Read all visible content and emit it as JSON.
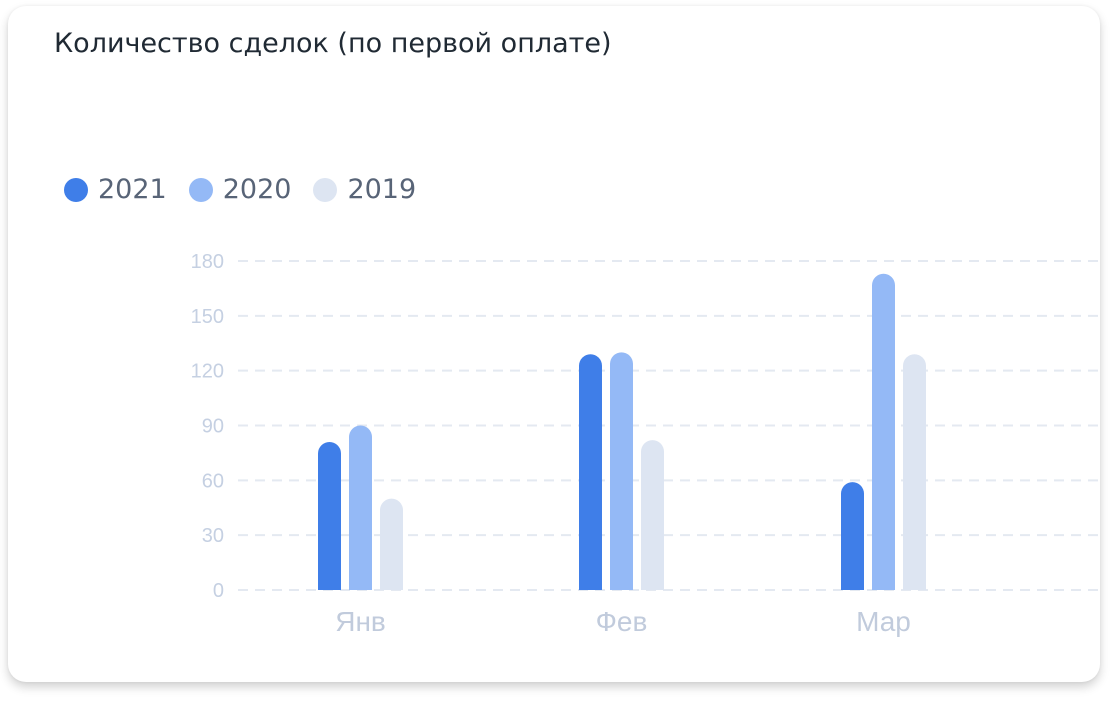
{
  "card": {
    "title": "Количество сделок (по первой оплате)"
  },
  "legend": {
    "items": [
      {
        "label": "2021",
        "color": "#3f7ee8"
      },
      {
        "label": "2020",
        "color": "#94b9f6"
      },
      {
        "label": "2019",
        "color": "#dde5f2"
      }
    ]
  },
  "chart_data": {
    "type": "bar",
    "title": "Количество сделок (по первой оплате)",
    "categories": [
      "Янв",
      "Фев",
      "Мар"
    ],
    "series": [
      {
        "name": "2021",
        "color": "#3f7ee8",
        "values": [
          81,
          129,
          59
        ]
      },
      {
        "name": "2020",
        "color": "#94b9f6",
        "values": [
          90,
          130,
          173
        ]
      },
      {
        "name": "2019",
        "color": "#dde5f2",
        "values": [
          50,
          82,
          129
        ]
      }
    ],
    "yticks": [
      0,
      30,
      60,
      90,
      120,
      150,
      180
    ],
    "ylim": [
      0,
      180
    ],
    "grid": true,
    "legend_position": "top-left"
  }
}
